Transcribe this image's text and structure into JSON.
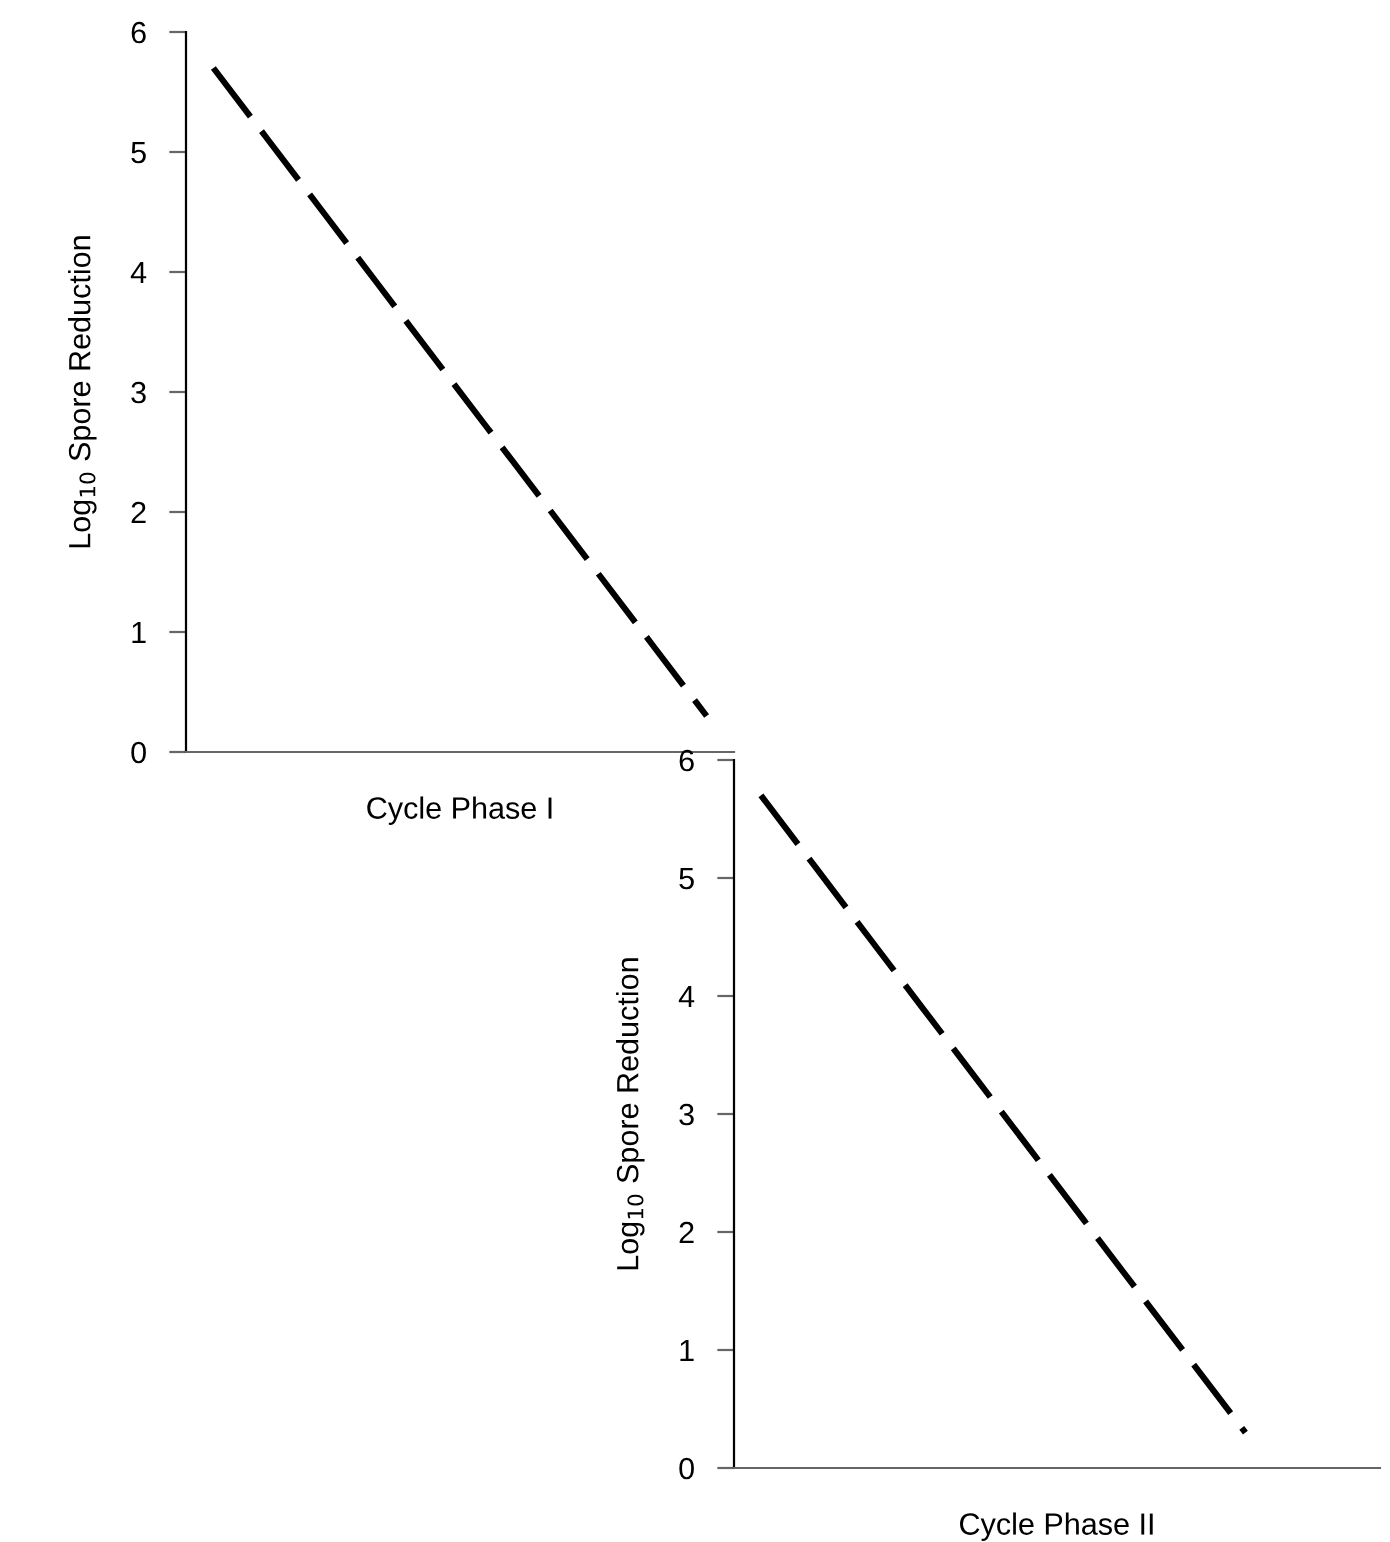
{
  "chart_data": [
    {
      "type": "line",
      "xlabel": "Cycle Phase I",
      "ylabel": "Log$_{10}$ Spore Reduction",
      "categories": [
        null,
        null,
        null,
        null,
        null,
        null,
        null,
        null,
        null,
        null
      ],
      "series": [
        {
          "color": "#000000",
          "values": [
            5.7,
            5.1,
            4.5,
            3.9,
            3.3,
            2.7,
            2.1,
            1.5,
            0.9,
            0.3
          ]
        }
      ],
      "ylim": [
        0,
        6
      ],
      "yticks": [
        0,
        1,
        2,
        3,
        4,
        5,
        6
      ],
      "line_style": "dashed",
      "marker": "none",
      "grid": false,
      "legend": false,
      "tick_labels": "y"
    },
    {
      "type": "line",
      "xlabel": "Cycle Phase II",
      "ylabel": "Log$_{10}$ Spore Reduction",
      "categories": [
        null,
        null,
        null,
        null,
        null,
        null,
        null,
        null,
        null,
        null,
        null,
        null
      ],
      "series": [
        {
          "color": "#000000",
          "values": [
            5.7,
            5.1,
            4.5,
            3.9,
            3.3,
            2.7,
            2.1,
            1.5,
            0.9,
            0.3,
            null,
            null
          ]
        }
      ],
      "ylim": [
        0,
        6
      ],
      "yticks": [
        0,
        1,
        2,
        3,
        4,
        5,
        6
      ],
      "line_style": "dashed",
      "marker": "none",
      "grid": false,
      "legend": false,
      "tick_labels": "y"
    }
  ]
}
